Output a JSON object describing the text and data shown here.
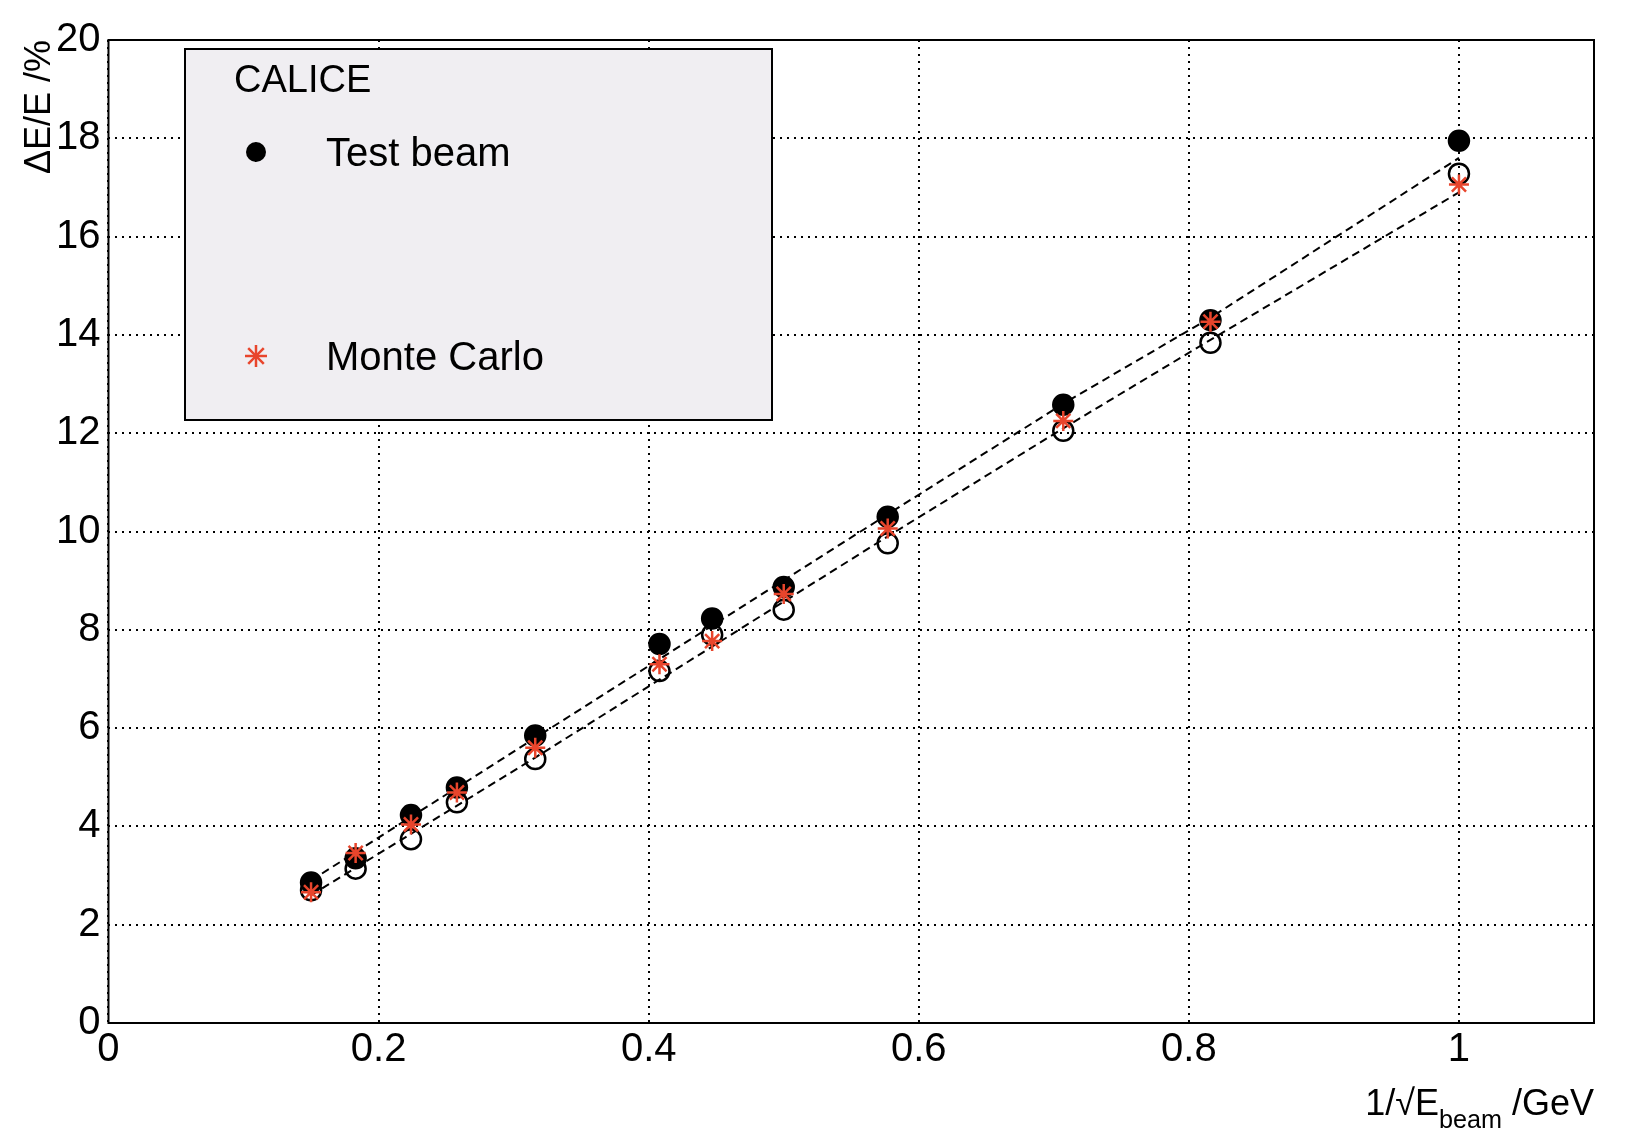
{
  "chart_data": {
    "type": "scatter",
    "xlabel": "1/√E$_{beam}$ /GeV",
    "ylabel": "ΔE/E /%",
    "legend_title": "CALICE",
    "legend": "top left",
    "grid": true,
    "xlim": [
      0,
      1.1
    ],
    "xticks": [
      0,
      0.2,
      0.4,
      0.6,
      0.8,
      1
    ],
    "ylim": [
      0,
      20
    ],
    "yticks": [
      0,
      2,
      4,
      6,
      8,
      10,
      12,
      14,
      16,
      18,
      20
    ],
    "x": [
      0.15,
      0.183,
      0.224,
      0.258,
      0.316,
      0.408,
      0.447,
      0.5,
      0.577,
      0.707,
      0.816,
      1
    ],
    "series": [
      {
        "name": "Test beam",
        "color": "#000000",
        "marker": "circle",
        "values": [
          2.86,
          3.35,
          4.23,
          4.79,
          5.85,
          7.71,
          8.23,
          8.87,
          10.3,
          12.58,
          14.3,
          17.95
        ]
      },
      {
        "color": "#000000",
        "marker": "circle",
        "values": [
          2.7,
          3.14,
          3.74,
          4.49,
          5.37,
          7.16,
          7.9,
          8.41,
          9.76,
          12.05,
          13.84,
          17.28
        ]
      },
      {
        "name": "Monte Carlo",
        "color": "#e8452c",
        "marker": "cross",
        "values": [
          2.66,
          3.46,
          4.04,
          4.69,
          5.6,
          7.3,
          7.77,
          8.73,
          10.06,
          12.25,
          14.27,
          17.06
        ]
      },
      {
        "type": "line",
        "color": "#000000",
        "line_style": "dashed",
        "marker": "none",
        "x": [
          0.15,
          0.316,
          0.577,
          0.707,
          0.816,
          1
        ],
        "values": [
          2.9,
          5.8,
          10.35,
          12.6,
          14.35,
          17.6
        ]
      },
      {
        "type": "line",
        "color": "#000000",
        "line_style": "dashed",
        "marker": "none",
        "x": [
          0.15,
          0.316,
          0.577,
          0.707,
          0.816,
          1
        ],
        "values": [
          2.6,
          5.4,
          9.9,
          12.1,
          13.9,
          16.9
        ]
      }
    ]
  }
}
